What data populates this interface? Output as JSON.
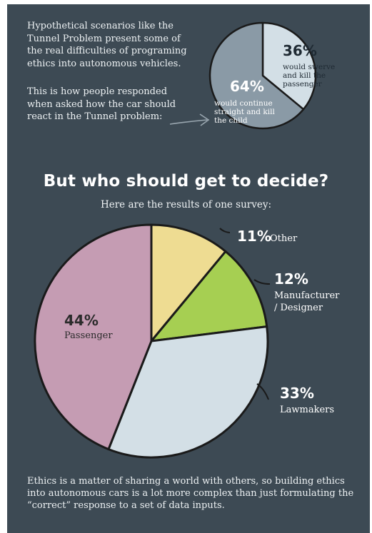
{
  "intro": {
    "paragraph1": "Hypothetical scenarios like the Tunnel Problem present some of the real difficulties of programing ethics into autonomous vehicles.",
    "paragraph2": "This is how people responded when asked how the car should react in the Tunnel problem:"
  },
  "headline": "But who should get to decide?",
  "subheadline": "Here are the results of one survey:",
  "footer": "Ethics is a matter of sharing a world with others, so building ethics into autonomous cars is a lot more complex than just formulating the “correct” response to a set of data inputs.",
  "colors": {
    "background": "#3d4a54",
    "light_blue": "#d3dfe6",
    "slate_blue": "#8a9aa6",
    "pink": "#c59cb3",
    "yellow": "#eedc92",
    "green": "#a6cf52",
    "outline": "#1a1a1a"
  },
  "chart_data": [
    {
      "type": "pie",
      "slices": [
        {
          "value": 36,
          "pct_label": "36%",
          "label": "would swerve and kill the passenger",
          "label_lines": [
            "would swerve",
            "and kill the",
            "passenger"
          ],
          "color": "#d3dfe6"
        },
        {
          "value": 64,
          "pct_label": "64%",
          "label": "would continue straight and kill the child",
          "label_lines": [
            "would continue",
            "straight and kill",
            "the child"
          ],
          "color": "#8a9aa6"
        }
      ]
    },
    {
      "type": "pie",
      "slices": [
        {
          "value": 11,
          "pct_label": "11%",
          "label": "Other",
          "label_lines": [
            "Other"
          ],
          "color": "#eedc92"
        },
        {
          "value": 12,
          "pct_label": "12%",
          "label": "Manufacturer / Designer",
          "label_lines": [
            "Manufacturer",
            "/ Designer"
          ],
          "color": "#a6cf52"
        },
        {
          "value": 33,
          "pct_label": "33%",
          "label": "Lawmakers",
          "label_lines": [
            "Lawmakers"
          ],
          "color": "#d3dfe6"
        },
        {
          "value": 44,
          "pct_label": "44%",
          "label": "Passenger",
          "label_lines": [
            "Passenger"
          ],
          "color": "#c59cb3"
        }
      ]
    }
  ]
}
